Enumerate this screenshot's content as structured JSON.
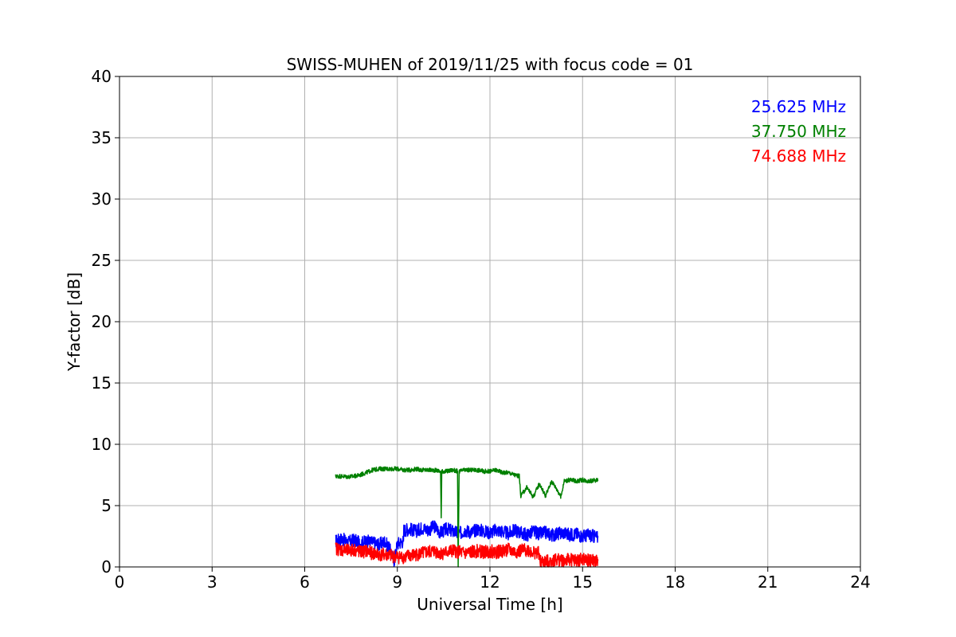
{
  "chart_data": {
    "type": "line",
    "title": "SWISS-MUHEN of 2019/11/25 with focus code = 01",
    "xlabel": "Universal Time [h]",
    "ylabel": "Y-factor [dB]",
    "xlim": [
      0,
      24
    ],
    "ylim": [
      0,
      40
    ],
    "xticks": [
      0,
      3,
      6,
      9,
      12,
      15,
      18,
      21,
      24
    ],
    "yticks": [
      0,
      5,
      10,
      15,
      20,
      25,
      30,
      35,
      40
    ],
    "grid": true,
    "legend_position": "top-right",
    "series": [
      {
        "name": "25.625 MHz",
        "color": "#0000ff",
        "x": [
          7.0,
          7.2,
          7.4,
          7.6,
          7.8,
          8.0,
          8.2,
          8.4,
          8.6,
          8.8,
          8.9,
          9.0,
          9.1,
          9.2,
          9.21,
          9.4,
          9.6,
          9.8,
          10.0,
          10.2,
          10.4,
          10.6,
          10.8,
          11.0,
          11.2,
          11.4,
          11.6,
          11.8,
          12.0,
          12.2,
          12.4,
          12.6,
          12.8,
          13.0,
          13.2,
          13.4,
          13.6,
          13.8,
          14.0,
          14.2,
          14.4,
          14.6,
          14.8,
          15.0,
          15.2,
          15.5
        ],
        "values": [
          2.1,
          2.3,
          2.0,
          2.2,
          1.9,
          2.1,
          2.0,
          1.8,
          2.1,
          1.2,
          0.5,
          1.9,
          2.0,
          2.1,
          3.0,
          3.1,
          2.9,
          3.2,
          3.0,
          3.3,
          2.8,
          3.1,
          2.9,
          2.7,
          3.0,
          2.8,
          3.1,
          2.9,
          2.8,
          3.0,
          2.9,
          2.7,
          3.0,
          2.8,
          2.6,
          2.9,
          2.7,
          2.8,
          2.6,
          2.7,
          2.8,
          2.6,
          2.7,
          2.5,
          2.6,
          2.4
        ]
      },
      {
        "name": "37.750 MHz",
        "color": "#008000",
        "x": [
          7.0,
          7.2,
          7.4,
          7.6,
          7.8,
          8.0,
          8.2,
          8.4,
          8.6,
          8.8,
          9.0,
          9.2,
          9.4,
          9.6,
          9.8,
          10.0,
          10.2,
          10.4,
          10.42,
          10.44,
          10.6,
          10.8,
          10.95,
          10.97,
          11.0,
          11.2,
          11.4,
          11.6,
          11.8,
          12.0,
          12.2,
          12.4,
          12.6,
          12.8,
          12.95,
          13.0,
          13.2,
          13.4,
          13.6,
          13.8,
          14.0,
          14.2,
          14.3,
          14.4,
          14.6,
          14.8,
          15.0,
          15.2,
          15.5
        ],
        "values": [
          7.4,
          7.4,
          7.35,
          7.4,
          7.5,
          7.7,
          7.9,
          8.0,
          8.0,
          8.0,
          8.0,
          7.9,
          7.9,
          8.0,
          7.9,
          7.9,
          7.9,
          7.8,
          4.0,
          7.8,
          7.8,
          7.9,
          7.8,
          0.0,
          7.8,
          7.9,
          7.9,
          7.9,
          7.8,
          7.8,
          7.9,
          7.7,
          7.7,
          7.5,
          7.4,
          5.8,
          6.5,
          5.7,
          6.8,
          5.8,
          7.0,
          6.2,
          5.7,
          7.0,
          7.1,
          7.0,
          7.1,
          7.0,
          7.1
        ]
      },
      {
        "name": "74.688 MHz",
        "color": "#ff0000",
        "x": [
          7.0,
          7.2,
          7.4,
          7.6,
          7.8,
          8.0,
          8.2,
          8.4,
          8.6,
          8.8,
          9.0,
          9.2,
          9.4,
          9.6,
          9.8,
          10.0,
          10.2,
          10.4,
          10.6,
          10.8,
          11.0,
          11.2,
          11.4,
          11.6,
          11.8,
          12.0,
          12.2,
          12.4,
          12.6,
          12.8,
          13.0,
          13.2,
          13.4,
          13.6,
          13.61,
          13.8,
          14.0,
          14.2,
          14.4,
          14.6,
          14.8,
          15.0,
          15.2,
          15.5
        ],
        "values": [
          1.5,
          1.4,
          1.3,
          1.4,
          1.2,
          1.3,
          1.1,
          1.0,
          1.0,
          0.9,
          0.8,
          0.8,
          0.9,
          1.0,
          1.1,
          1.2,
          1.3,
          1.1,
          1.2,
          1.3,
          1.2,
          1.1,
          1.2,
          1.3,
          1.2,
          1.3,
          1.2,
          1.3,
          1.4,
          1.2,
          1.3,
          1.4,
          1.2,
          1.1,
          0.4,
          0.4,
          0.5,
          0.6,
          0.5,
          0.6,
          0.5,
          0.6,
          0.5,
          0.5
        ]
      }
    ]
  }
}
